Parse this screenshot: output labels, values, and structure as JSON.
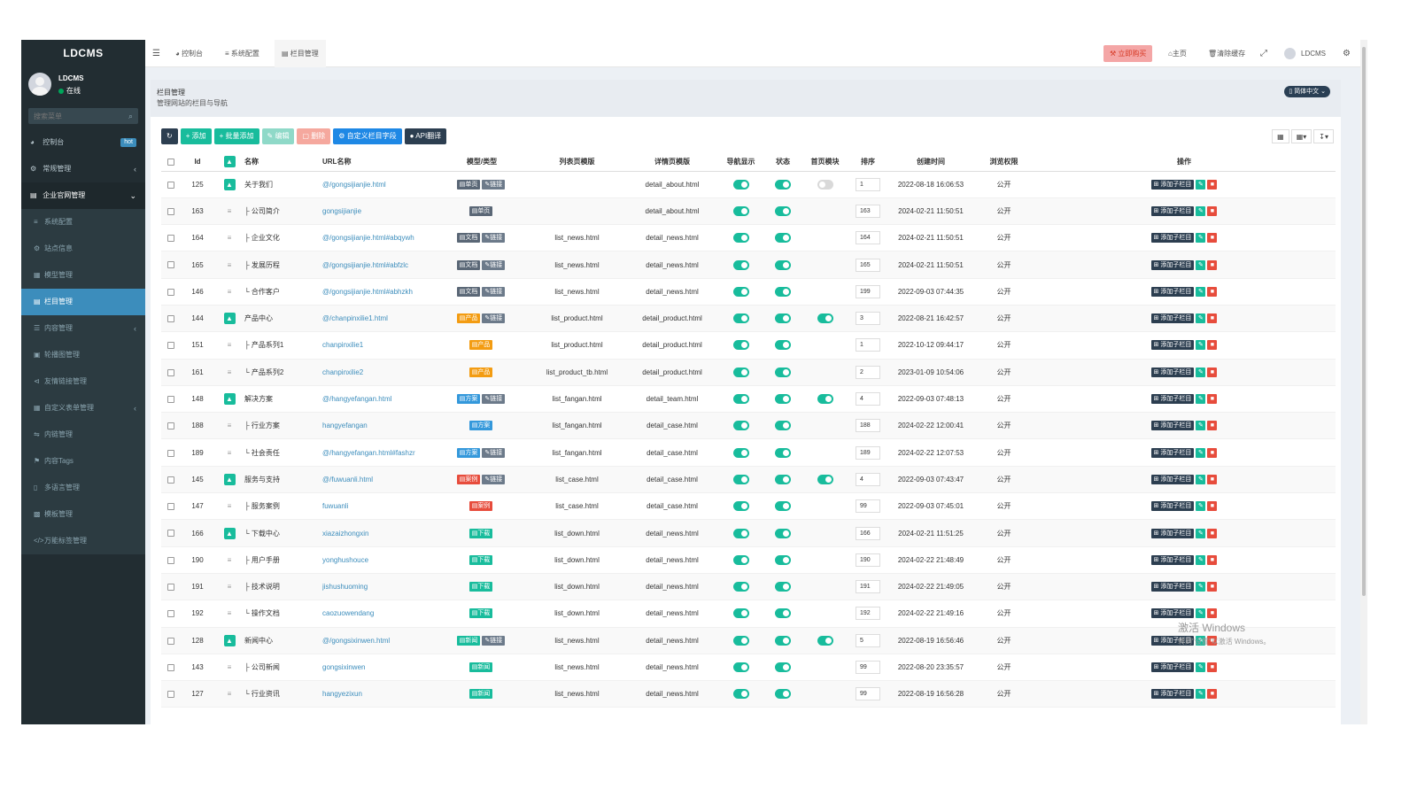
{
  "sidebar": {
    "logo": "LDCMS",
    "user": {
      "name": "LDCMS",
      "status": "在线"
    },
    "search_placeholder": "搜索菜单",
    "items": [
      {
        "label": "控制台",
        "icon": "dashboard-icon",
        "badge": "hot"
      },
      {
        "label": "常规管理",
        "icon": "cogs-icon"
      },
      {
        "label": "企业官网管理",
        "icon": "desktop-icon"
      }
    ],
    "sub_items": [
      {
        "label": "系统配置"
      },
      {
        "label": "站点信息"
      },
      {
        "label": "模型管理"
      },
      {
        "label": "栏目管理"
      },
      {
        "label": "内容管理"
      },
      {
        "label": "轮播图管理"
      },
      {
        "label": "友情链接管理"
      },
      {
        "label": "自定义表单管理"
      },
      {
        "label": "内链管理"
      },
      {
        "label": "内容Tags"
      },
      {
        "label": "多语言管理"
      },
      {
        "label": "模板管理"
      },
      {
        "label": "万能标签管理"
      }
    ]
  },
  "header": {
    "tabs": [
      {
        "label": "控制台"
      },
      {
        "label": "系统配置"
      },
      {
        "label": "栏目管理"
      }
    ],
    "buy": "立即购买",
    "home": "主页",
    "clear_cache": "清除缓存",
    "user": "LDCMS"
  },
  "page": {
    "title": "栏目管理",
    "subtitle": "管理网站的栏目与导航",
    "lang": "简体中文"
  },
  "toolbar": {
    "add": "添加",
    "batch_add": "批量添加",
    "edit": "编辑",
    "delete": "删除",
    "custom_field": "自定义栏目字段",
    "api_translate": "API翻译"
  },
  "table": {
    "headers": [
      "Id",
      "名称",
      "URL名称",
      "模型/类型",
      "列表页模版",
      "详情页模版",
      "导航显示",
      "状态",
      "首页模块",
      "排序",
      "创建时间",
      "浏览权限",
      "操作"
    ],
    "op_add_label": "添加子栏目",
    "tag_colors": {
      "单页": "#5a6776",
      "链接": "#6c7a8a",
      "文档": "#5a6776",
      "产品": "#f39c12",
      "方案": "#3498db",
      "案例": "#e74c3c",
      "下载": "#18bc9c",
      "新闻": "#18bc9c"
    },
    "rows": [
      {
        "id": "125",
        "top": true,
        "name": "关于我们",
        "url": "@/gongsijianjie.html",
        "tags": [
          "单页",
          "链接"
        ],
        "list_tpl": "",
        "detail_tpl": "detail_about.html",
        "nav": true,
        "status": true,
        "home": "off",
        "sort": "1",
        "time": "2022-08-18 16:06:53",
        "perm": "公开"
      },
      {
        "id": "163",
        "top": false,
        "name": "├ 公司简介",
        "url": "gongsijianjie",
        "tags": [
          "单页"
        ],
        "list_tpl": "",
        "detail_tpl": "detail_about.html",
        "nav": true,
        "status": true,
        "home": "none",
        "sort": "163",
        "time": "2024-02-21 11:50:51",
        "perm": "公开"
      },
      {
        "id": "164",
        "top": false,
        "name": "├ 企业文化",
        "url": "@/gongsijianjie.html#abqywh",
        "tags": [
          "文档",
          "链接"
        ],
        "list_tpl": "list_news.html",
        "detail_tpl": "detail_news.html",
        "nav": true,
        "status": true,
        "home": "none",
        "sort": "164",
        "time": "2024-02-21 11:50:51",
        "perm": "公开"
      },
      {
        "id": "165",
        "top": false,
        "name": "├ 发展历程",
        "url": "@/gongsijianjie.html#abfzlc",
        "tags": [
          "文档",
          "链接"
        ],
        "list_tpl": "list_news.html",
        "detail_tpl": "detail_news.html",
        "nav": true,
        "status": true,
        "home": "none",
        "sort": "165",
        "time": "2024-02-21 11:50:51",
        "perm": "公开"
      },
      {
        "id": "146",
        "top": false,
        "name": "└ 合作客户",
        "url": "@/gongsijianjie.html#abhzkh",
        "tags": [
          "文档",
          "链接"
        ],
        "list_tpl": "list_news.html",
        "detail_tpl": "detail_news.html",
        "nav": true,
        "status": true,
        "home": "none",
        "sort": "199",
        "time": "2022-09-03 07:44:35",
        "perm": "公开"
      },
      {
        "id": "144",
        "top": true,
        "name": "产品中心",
        "url": "@/chanpinxilie1.html",
        "tags": [
          "产品",
          "链接"
        ],
        "list_tpl": "list_product.html",
        "detail_tpl": "detail_product.html",
        "nav": true,
        "status": true,
        "home": "on",
        "sort": "3",
        "time": "2022-08-21 16:42:57",
        "perm": "公开"
      },
      {
        "id": "151",
        "top": false,
        "name": "├ 产品系列1",
        "url": "chanpinxilie1",
        "tags": [
          "产品"
        ],
        "list_tpl": "list_product.html",
        "detail_tpl": "detail_product.html",
        "nav": true,
        "status": true,
        "home": "none",
        "sort": "1",
        "time": "2022-10-12 09:44:17",
        "perm": "公开"
      },
      {
        "id": "161",
        "top": false,
        "name": "└ 产品系列2",
        "url": "chanpinxilie2",
        "tags": [
          "产品"
        ],
        "list_tpl": "list_product_tb.html",
        "detail_tpl": "detail_product.html",
        "nav": true,
        "status": true,
        "home": "none",
        "sort": "2",
        "time": "2023-01-09 10:54:06",
        "perm": "公开"
      },
      {
        "id": "148",
        "top": true,
        "name": "解决方案",
        "url": "@/hangyefangan.html",
        "tags": [
          "方案",
          "链接"
        ],
        "list_tpl": "list_fangan.html",
        "detail_tpl": "detail_team.html",
        "nav": true,
        "status": true,
        "home": "on",
        "sort": "4",
        "time": "2022-09-03 07:48:13",
        "perm": "公开"
      },
      {
        "id": "188",
        "top": false,
        "name": "├ 行业方案",
        "url": "hangyefangan",
        "tags": [
          "方案"
        ],
        "list_tpl": "list_fangan.html",
        "detail_tpl": "detail_case.html",
        "nav": true,
        "status": true,
        "home": "none",
        "sort": "188",
        "time": "2024-02-22 12:00:41",
        "perm": "公开"
      },
      {
        "id": "189",
        "top": false,
        "name": "└ 社会责任",
        "url": "@/hangyefangan.html#fashzr",
        "tags": [
          "方案",
          "链接"
        ],
        "list_tpl": "list_fangan.html",
        "detail_tpl": "detail_case.html",
        "nav": true,
        "status": true,
        "home": "none",
        "sort": "189",
        "time": "2024-02-22 12:07:53",
        "perm": "公开"
      },
      {
        "id": "145",
        "top": true,
        "name": "服务与支持",
        "url": "@/fuwuanli.html",
        "tags": [
          "案例",
          "链接"
        ],
        "list_tpl": "list_case.html",
        "detail_tpl": "detail_case.html",
        "nav": true,
        "status": true,
        "home": "on",
        "sort": "4",
        "time": "2022-09-03 07:43:47",
        "perm": "公开"
      },
      {
        "id": "147",
        "top": false,
        "name": "├ 服务案例",
        "url": "fuwuanli",
        "tags": [
          "案例"
        ],
        "list_tpl": "list_case.html",
        "detail_tpl": "detail_case.html",
        "nav": true,
        "status": true,
        "home": "none",
        "sort": "99",
        "time": "2022-09-03 07:45:01",
        "perm": "公开"
      },
      {
        "id": "166",
        "top": true,
        "name": "└ 下载中心",
        "url": "xiazaizhongxin",
        "tags": [
          "下载"
        ],
        "list_tpl": "list_down.html",
        "detail_tpl": "detail_news.html",
        "nav": true,
        "status": true,
        "home": "none",
        "sort": "166",
        "time": "2024-02-21 11:51:25",
        "perm": "公开"
      },
      {
        "id": "190",
        "top": false,
        "name": "├ 用户手册",
        "url": "yonghushouce",
        "tags": [
          "下载"
        ],
        "list_tpl": "list_down.html",
        "detail_tpl": "detail_news.html",
        "nav": true,
        "status": true,
        "home": "none",
        "sort": "190",
        "time": "2024-02-22 21:48:49",
        "perm": "公开"
      },
      {
        "id": "191",
        "top": false,
        "name": "├ 技术说明",
        "url": "jishushuoming",
        "tags": [
          "下载"
        ],
        "list_tpl": "list_down.html",
        "detail_tpl": "detail_news.html",
        "nav": true,
        "status": true,
        "home": "none",
        "sort": "191",
        "time": "2024-02-22 21:49:05",
        "perm": "公开"
      },
      {
        "id": "192",
        "top": false,
        "name": "└ 操作文档",
        "url": "caozuowendang",
        "tags": [
          "下载"
        ],
        "list_tpl": "list_down.html",
        "detail_tpl": "detail_news.html",
        "nav": true,
        "status": true,
        "home": "none",
        "sort": "192",
        "time": "2024-02-22 21:49:16",
        "perm": "公开"
      },
      {
        "id": "128",
        "top": true,
        "name": "新闻中心",
        "url": "@/gongsixinwen.html",
        "tags": [
          "新闻",
          "链接"
        ],
        "list_tpl": "list_news.html",
        "detail_tpl": "detail_news.html",
        "nav": true,
        "status": true,
        "home": "on",
        "sort": "5",
        "time": "2022-08-19 16:56:46",
        "perm": "公开"
      },
      {
        "id": "143",
        "top": false,
        "name": "├ 公司新闻",
        "url": "gongsixinwen",
        "tags": [
          "新闻"
        ],
        "list_tpl": "list_news.html",
        "detail_tpl": "detail_news.html",
        "nav": true,
        "status": true,
        "home": "none",
        "sort": "99",
        "time": "2022-08-20 23:35:57",
        "perm": "公开"
      },
      {
        "id": "127",
        "top": false,
        "name": "└ 行业资讯",
        "url": "hangyezixun",
        "tags": [
          "新闻"
        ],
        "list_tpl": "list_news.html",
        "detail_tpl": "detail_news.html",
        "nav": true,
        "status": true,
        "home": "none",
        "sort": "99",
        "time": "2022-08-19 16:56:28",
        "perm": "公开"
      }
    ]
  },
  "watermark": {
    "line1": "激活 Windows",
    "line2": "转到\"设置\"以激活 Windows。"
  }
}
